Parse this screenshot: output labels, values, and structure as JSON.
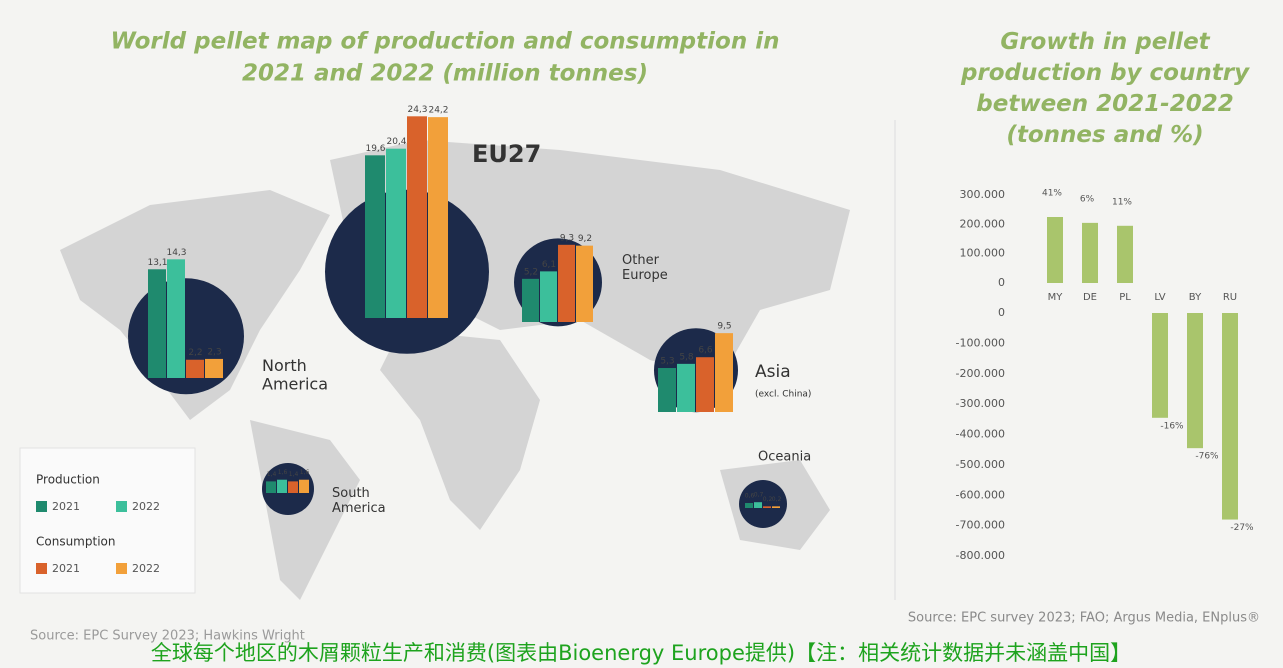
{
  "chart_data": [
    {
      "type": "bar",
      "title": "World pellet map of production and consumption in 2021 and 2022 (million tonnes)",
      "categories": [
        "EU27",
        "Other Europe",
        "North America",
        "Asia",
        "South America",
        "Oceania"
      ],
      "category_note": {
        "index": 3,
        "text": "(excl. China)"
      },
      "legend_groups": [
        "Production",
        "Consumption"
      ],
      "series": [
        {
          "name": "2021",
          "group": 0,
          "color": "#1f8a6e",
          "values": [
            19.6,
            5.2,
            13.1,
            5.3,
            1.4,
            0.6
          ],
          "value_labels": [
            "19,6",
            "5,2",
            "13,1",
            "5,3",
            "1,4",
            "0,6"
          ]
        },
        {
          "name": "2022",
          "group": 0,
          "color": "#3cbf9b",
          "values": [
            20.4,
            6.1,
            14.3,
            5.8,
            1.6,
            0.7
          ],
          "value_labels": [
            "20,4",
            "6,1",
            "14,3",
            "5,8",
            "1,6",
            "0,7"
          ]
        },
        {
          "name": "2021",
          "group": 1,
          "color": "#d9622b",
          "values": [
            24.3,
            9.3,
            2.2,
            6.6,
            1.4,
            0.2
          ],
          "value_labels": [
            "24,3",
            "9,3",
            "2,2",
            "6,6",
            "1,4",
            "0,2"
          ]
        },
        {
          "name": "2022",
          "group": 1,
          "color": "#f2a03a",
          "values": [
            24.2,
            9.2,
            2.3,
            9.5,
            1.6,
            0.2
          ],
          "value_labels": [
            "24,2",
            "9,2",
            "2,3",
            "9,5",
            "1,6",
            "0,2"
          ]
        }
      ],
      "source": "Source: EPC Survey 2023; Hawkins Wright"
    },
    {
      "type": "bar",
      "title": "Growth in pellet production by country between 2021-2022 (tonnes and %)",
      "color": "#a9c56c",
      "panels": [
        {
          "categories": [
            "MY",
            "DE",
            "PL"
          ],
          "values": [
            225000,
            205000,
            195000
          ],
          "annotations": [
            "41%",
            "6%",
            "11%"
          ],
          "ylim": [
            0,
            300000
          ],
          "yticks": [
            0,
            {
              "value": 100000,
              "label": "100.000"
            },
            {
              "value": 200000,
              "label": "200.000"
            },
            {
              "value": 300000,
              "label": "300.000"
            }
          ]
        },
        {
          "categories": [
            "LV",
            "BY",
            "RU"
          ],
          "values": [
            -345000,
            -445000,
            -680000
          ],
          "annotations": [
            "-16%",
            "-76%",
            "-27%"
          ],
          "ylim": [
            -800000,
            0
          ],
          "yticks": [
            {
              "value": -800000,
              "label": "-800.000"
            },
            {
              "value": -700000,
              "label": "-700.000"
            },
            {
              "value": -600000,
              "label": "-600.000"
            },
            {
              "value": -500000,
              "label": "-500.000"
            },
            {
              "value": -400000,
              "label": "-400.000"
            },
            {
              "value": -300000,
              "label": "-300.000"
            },
            {
              "value": -200000,
              "label": "-200.000"
            },
            {
              "value": -100000,
              "label": "-100.000"
            },
            0
          ]
        }
      ],
      "source": "Source: EPC survey 2023; FAO; Argus Media, ENplus®"
    }
  ],
  "caption": "全球每个地区的木屑颗粒生产和消费(图表由Bioenergy Europe提供)【注：相关统计数据并未涵盖中国】"
}
